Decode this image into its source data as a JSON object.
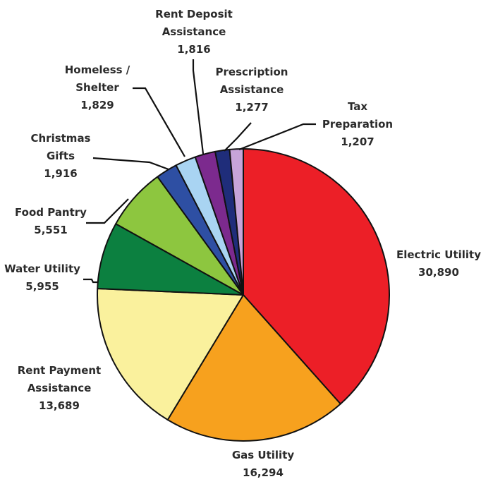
{
  "chart_data": {
    "type": "pie",
    "title": "",
    "slices": [
      {
        "label": [
          "Electric Utility"
        ],
        "value": 30890,
        "value_text": "30,890",
        "color": "#ec1f27"
      },
      {
        "label": [
          "Gas Utility"
        ],
        "value": 16294,
        "value_text": "16,294",
        "color": "#f7a11e"
      },
      {
        "label": [
          "Rent Payment",
          "Assistance"
        ],
        "value": 13689,
        "value_text": "13,689",
        "color": "#faf19d"
      },
      {
        "label": [
          "Water Utility"
        ],
        "value": 5955,
        "value_text": "5,955",
        "color": "#0c8040"
      },
      {
        "label": [
          "Food Pantry"
        ],
        "value": 5551,
        "value_text": "5,551",
        "color": "#8dc63f"
      },
      {
        "label": [
          "Christmas",
          "Gifts"
        ],
        "value": 1916,
        "value_text": "1,916",
        "color": "#2e4fa3"
      },
      {
        "label": [
          "Homeless /",
          "Shelter"
        ],
        "value": 1829,
        "value_text": "1,829",
        "color": "#a9d4f2"
      },
      {
        "label": [
          "Rent Deposit",
          "Assistance"
        ],
        "value": 1816,
        "value_text": "1,816",
        "color": "#7c2a8e"
      },
      {
        "label": [
          "Prescription",
          "Assistance"
        ],
        "value": 1277,
        "value_text": "1,277",
        "color": "#1f2d7a"
      },
      {
        "label": [
          "Tax",
          "Preparation"
        ],
        "value": 1207,
        "value_text": "1,207",
        "color": "#c7a4d9"
      }
    ]
  }
}
